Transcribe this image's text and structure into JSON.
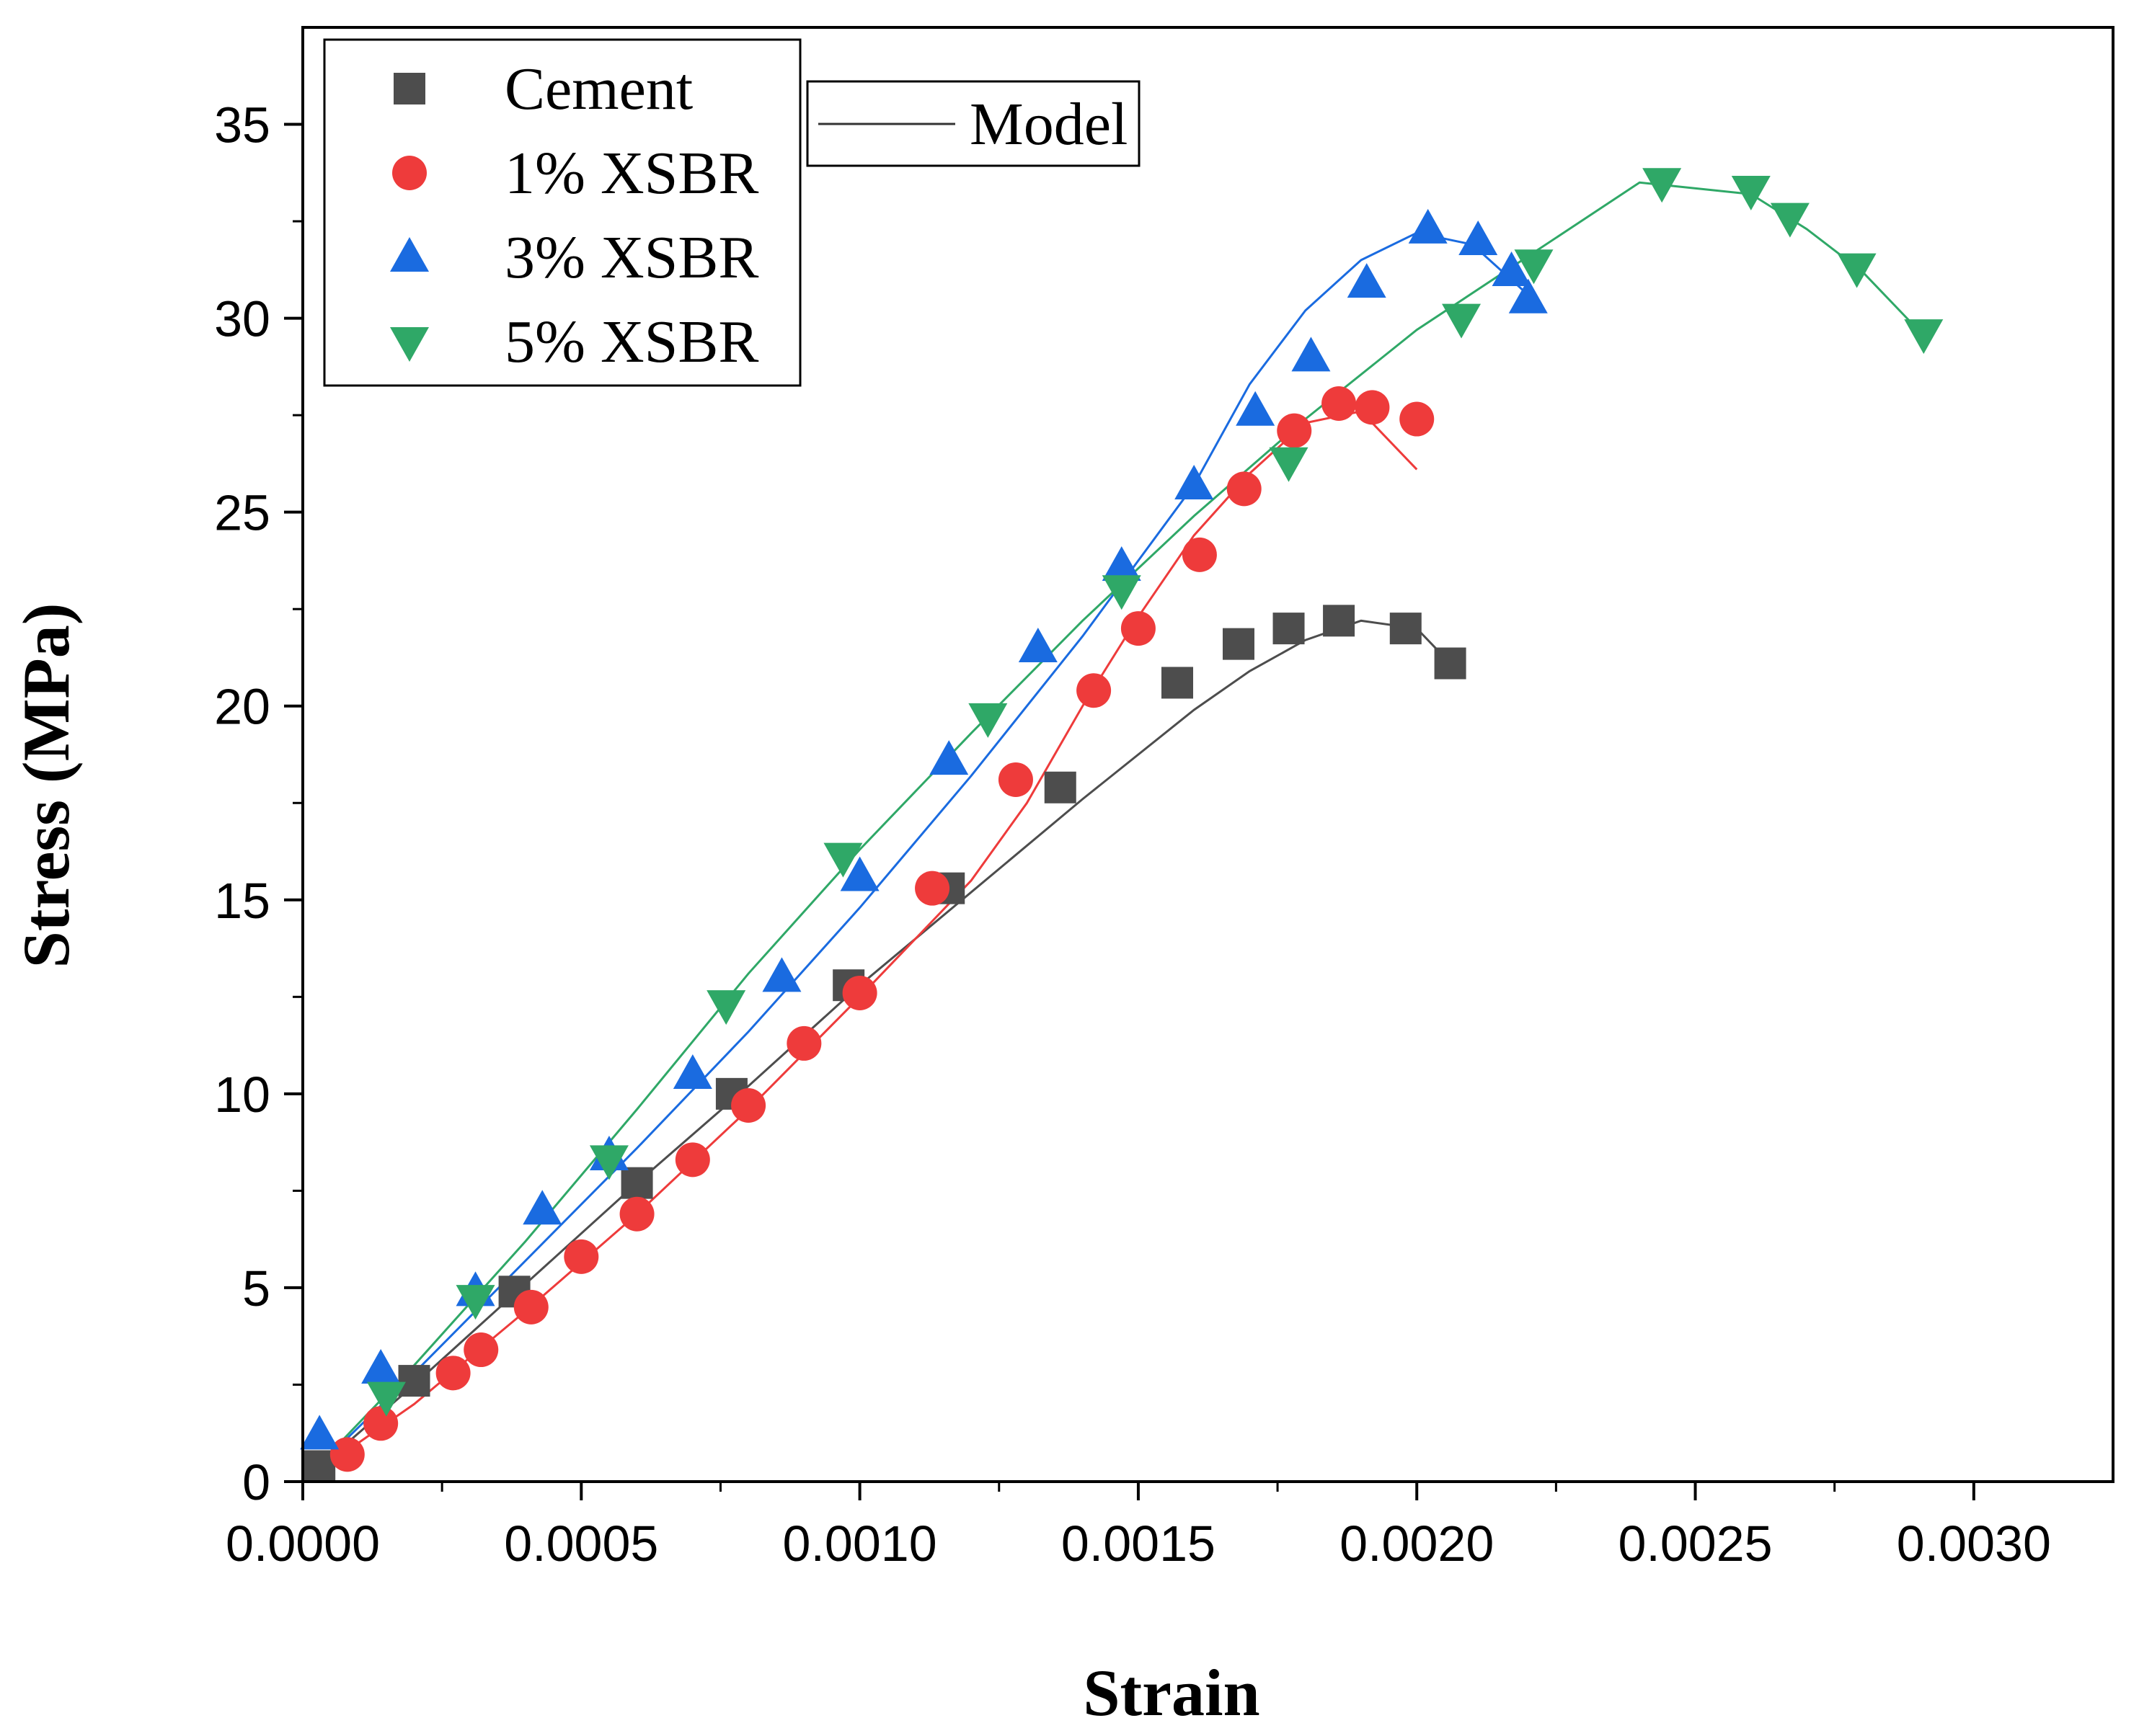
{
  "chart_data": {
    "type": "scatter",
    "title": "",
    "xlabel": "Strain",
    "ylabel": "Stress (MPa)",
    "xlim": [
      0,
      0.00325
    ],
    "ylim": [
      0,
      37.5
    ],
    "xticks": [
      0,
      0.0005,
      0.001,
      0.0015,
      0.002,
      0.0025,
      0.003
    ],
    "xtick_labels": [
      "0.0000",
      "0.0005",
      "0.0010",
      "0.0015",
      "0.0020",
      "0.0025",
      "0.0030"
    ],
    "yticks": [
      0,
      5,
      10,
      15,
      20,
      25,
      30,
      35
    ],
    "ytick_labels": [
      "0",
      "5",
      "10",
      "15",
      "20",
      "25",
      "30",
      "35"
    ],
    "legend_model_label": "Model",
    "series": [
      {
        "name": "Cement",
        "marker": "square",
        "color": "#4d4d4d",
        "x": [
          3e-05,
          0.0002,
          0.00038,
          0.0006,
          0.00077,
          0.00098,
          0.00116,
          0.00136,
          0.00157,
          0.00168,
          0.00177,
          0.00186,
          0.00198,
          0.00206
        ],
        "y": [
          0.4,
          2.6,
          4.9,
          7.7,
          10.0,
          12.8,
          15.3,
          17.9,
          20.6,
          21.6,
          22.0,
          22.2,
          22.0,
          21.1
        ],
        "model_x": [
          0,
          0.0002,
          0.0004,
          0.0006,
          0.0008,
          0.001,
          0.0012,
          0.0014,
          0.0016,
          0.0017,
          0.0018,
          0.0019,
          0.002,
          0.00206
        ],
        "model_y": [
          0,
          2.5,
          5.1,
          7.7,
          10.2,
          12.8,
          15.2,
          17.6,
          19.9,
          20.9,
          21.7,
          22.2,
          22.0,
          21.1
        ]
      },
      {
        "name": "1% XSBR",
        "marker": "circle",
        "color": "#ee3b3b",
        "x": [
          8e-05,
          0.00014,
          0.00027,
          0.00032,
          0.00041,
          0.0005,
          0.0006,
          0.0007,
          0.0008,
          0.0009,
          0.001,
          0.00113,
          0.00128,
          0.00142,
          0.0015,
          0.00161,
          0.00169,
          0.00178,
          0.00186,
          0.00192,
          0.002
        ],
        "y": [
          0.7,
          1.5,
          2.8,
          3.4,
          4.5,
          5.8,
          6.9,
          8.3,
          9.7,
          11.3,
          12.6,
          15.3,
          18.1,
          20.4,
          22.0,
          23.9,
          25.6,
          27.1,
          27.8,
          27.7,
          27.4
        ],
        "model_x": [
          0,
          0.0002,
          0.0004,
          0.0006,
          0.0008,
          0.001,
          0.0012,
          0.0013,
          0.0014,
          0.0015,
          0.0016,
          0.0017,
          0.0018,
          0.0019,
          0.002
        ],
        "model_y": [
          0,
          2.0,
          4.4,
          6.9,
          9.6,
          12.5,
          15.5,
          17.5,
          20.0,
          22.3,
          24.4,
          26.0,
          27.3,
          27.6,
          26.1
        ]
      },
      {
        "name": "3% XSBR",
        "marker": "triangle-up",
        "color": "#1a6be0",
        "x": [
          3e-05,
          0.00014,
          0.00031,
          0.00043,
          0.00055,
          0.0007,
          0.00086,
          0.001,
          0.00116,
          0.00132,
          0.00147,
          0.0016,
          0.00171,
          0.00181,
          0.00191,
          0.00202,
          0.00211,
          0.00217,
          0.0022
        ],
        "y": [
          1.2,
          2.9,
          4.9,
          7.0,
          8.4,
          10.5,
          13.0,
          15.6,
          18.6,
          21.5,
          23.6,
          25.7,
          27.6,
          29.0,
          30.9,
          32.3,
          32.0,
          31.2,
          30.5
        ],
        "model_x": [
          0,
          0.0002,
          0.0004,
          0.0006,
          0.0008,
          0.001,
          0.0012,
          0.0014,
          0.0016,
          0.0017,
          0.0018,
          0.0019,
          0.002,
          0.0021,
          0.0022
        ],
        "model_y": [
          0,
          2.8,
          5.7,
          8.6,
          11.6,
          14.8,
          18.2,
          21.8,
          25.7,
          28.3,
          30.2,
          31.5,
          32.2,
          31.9,
          30.6
        ]
      },
      {
        "name": "5% XSBR",
        "marker": "triangle-down",
        "color": "#2fa867",
        "x": [
          0.00015,
          0.00031,
          0.00055,
          0.00076,
          0.00097,
          0.00123,
          0.00147,
          0.00177,
          0.00208,
          0.00221,
          0.00244,
          0.0026,
          0.00267,
          0.00279,
          0.00291
        ],
        "y": [
          2.2,
          4.7,
          8.3,
          12.3,
          16.1,
          19.7,
          23.0,
          26.3,
          30.0,
          31.4,
          33.5,
          33.3,
          32.6,
          31.3,
          29.6
        ],
        "model_x": [
          0,
          0.0002,
          0.0004,
          0.0006,
          0.0008,
          0.001,
          0.0012,
          0.0014,
          0.0016,
          0.0018,
          0.002,
          0.0022,
          0.0024,
          0.0026,
          0.0027,
          0.0028,
          0.0029
        ],
        "model_y": [
          0,
          3.0,
          6.2,
          9.6,
          13.1,
          16.3,
          19.3,
          22.2,
          24.9,
          27.4,
          29.7,
          31.6,
          33.5,
          33.2,
          32.3,
          31.2,
          29.7
        ]
      }
    ]
  }
}
